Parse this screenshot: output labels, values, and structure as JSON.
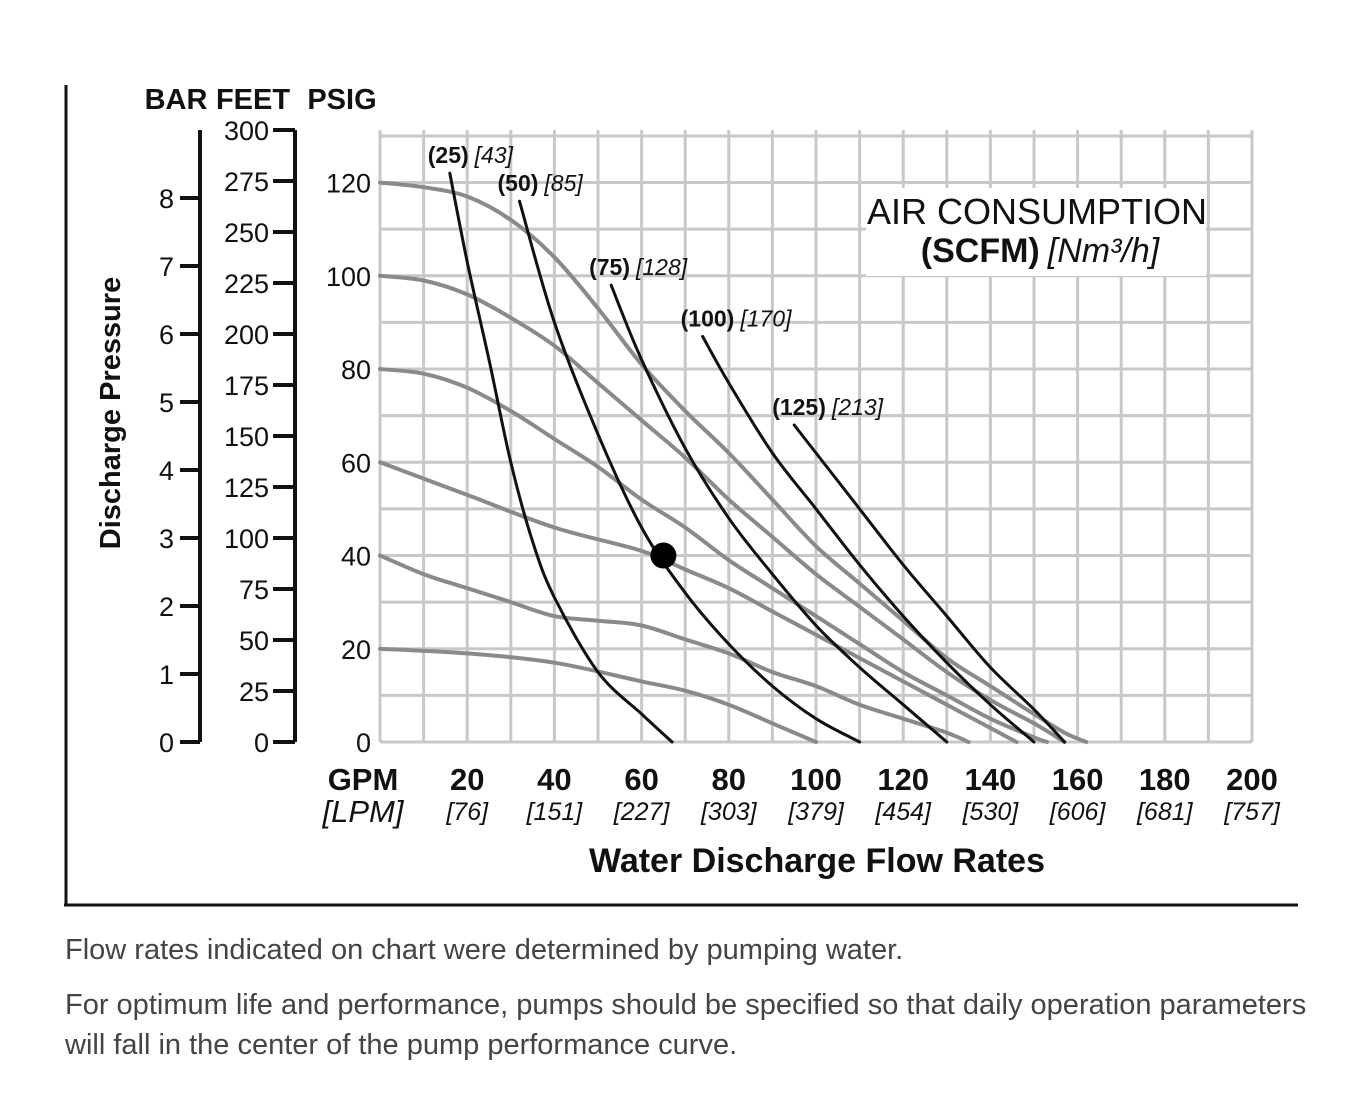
{
  "chart_data": {
    "type": "line",
    "x_axis": {
      "unit_label": "GPM",
      "alt_unit_label": "[LPM]",
      "title": "Water Discharge Flow Rates",
      "range": [
        0,
        200
      ],
      "ticks": [
        20,
        40,
        60,
        80,
        100,
        120,
        140,
        160,
        180,
        200
      ],
      "alt_tick_labels": [
        "[76]",
        "[151]",
        "[227]",
        "[303]",
        "[379]",
        "[454]",
        "[530]",
        "[606]",
        "[681]",
        "[757]"
      ]
    },
    "y_axis": {
      "title": "Discharge Pressure",
      "unit_label": "PSIG",
      "range": [
        0,
        130
      ],
      "ticks": [
        0,
        20,
        40,
        60,
        80,
        100,
        120
      ]
    },
    "feet_axis": {
      "unit_label": "FEET",
      "ticks": [
        0,
        25,
        50,
        75,
        100,
        125,
        150,
        175,
        200,
        225,
        250,
        275,
        300
      ]
    },
    "bar_axis": {
      "unit_label": "BAR",
      "ticks": [
        0,
        1,
        2,
        3,
        4,
        5,
        6,
        7,
        8
      ]
    },
    "grid": true,
    "air_consumption_title": "AIR CONSUMPTION",
    "air_consumption_units_bold": "(SCFM)",
    "air_consumption_units_italic": "[Nm³/h]",
    "air_pressure_curves": [
      {
        "points": [
          [
            0,
            120
          ],
          [
            10,
            119
          ],
          [
            20,
            117
          ],
          [
            30,
            112
          ],
          [
            40,
            104
          ],
          [
            50,
            93
          ],
          [
            60,
            81
          ],
          [
            70,
            71
          ],
          [
            80,
            62
          ],
          [
            90,
            52
          ],
          [
            100,
            42
          ],
          [
            110,
            34
          ],
          [
            120,
            26
          ],
          [
            130,
            18
          ],
          [
            140,
            12
          ],
          [
            150,
            6
          ],
          [
            157,
            2
          ],
          [
            162,
            0
          ]
        ]
      },
      {
        "points": [
          [
            0,
            100
          ],
          [
            10,
            99
          ],
          [
            20,
            96
          ],
          [
            30,
            91
          ],
          [
            40,
            85
          ],
          [
            50,
            77
          ],
          [
            60,
            69
          ],
          [
            70,
            61
          ],
          [
            80,
            52
          ],
          [
            90,
            44
          ],
          [
            100,
            36
          ],
          [
            110,
            29
          ],
          [
            120,
            22
          ],
          [
            130,
            15
          ],
          [
            140,
            9
          ],
          [
            150,
            4
          ],
          [
            157,
            0
          ]
        ]
      },
      {
        "points": [
          [
            0,
            80
          ],
          [
            10,
            79
          ],
          [
            20,
            76
          ],
          [
            30,
            71
          ],
          [
            40,
            65
          ],
          [
            50,
            59
          ],
          [
            60,
            52
          ],
          [
            70,
            46
          ],
          [
            80,
            39
          ],
          [
            90,
            33
          ],
          [
            100,
            27
          ],
          [
            110,
            21
          ],
          [
            120,
            15
          ],
          [
            130,
            10
          ],
          [
            140,
            5
          ],
          [
            150,
            1
          ],
          [
            153,
            0
          ]
        ]
      },
      {
        "points": [
          [
            0,
            60
          ],
          [
            20,
            53
          ],
          [
            40,
            46
          ],
          [
            60,
            41
          ],
          [
            70,
            37
          ],
          [
            80,
            33
          ],
          [
            90,
            28
          ],
          [
            100,
            23
          ],
          [
            110,
            18
          ],
          [
            120,
            13
          ],
          [
            130,
            8
          ],
          [
            140,
            3
          ],
          [
            146,
            0
          ]
        ]
      },
      {
        "points": [
          [
            0,
            40
          ],
          [
            10,
            36
          ],
          [
            20,
            33
          ],
          [
            30,
            30
          ],
          [
            40,
            27
          ],
          [
            50,
            26
          ],
          [
            60,
            25
          ],
          [
            70,
            22
          ],
          [
            80,
            19
          ],
          [
            90,
            15
          ],
          [
            100,
            12
          ],
          [
            110,
            8
          ],
          [
            120,
            5
          ],
          [
            130,
            2
          ],
          [
            135,
            0
          ]
        ]
      },
      {
        "points": [
          [
            0,
            20
          ],
          [
            20,
            19
          ],
          [
            40,
            17
          ],
          [
            60,
            13
          ],
          [
            70,
            11
          ],
          [
            80,
            8
          ],
          [
            90,
            4
          ],
          [
            100,
            0
          ]
        ]
      }
    ],
    "air_consumption_curves": [
      {
        "name_bold": "(25)",
        "name_italic": "[43]",
        "points": [
          [
            16,
            122
          ],
          [
            20,
            103
          ],
          [
            25,
            82
          ],
          [
            30,
            60
          ],
          [
            35,
            43
          ],
          [
            40,
            31
          ],
          [
            50,
            15
          ],
          [
            60,
            6
          ],
          [
            67,
            0
          ]
        ]
      },
      {
        "name_bold": "(50)",
        "name_italic": "[85]",
        "points": [
          [
            32,
            116
          ],
          [
            40,
            90
          ],
          [
            50,
            66
          ],
          [
            60,
            46
          ],
          [
            70,
            32
          ],
          [
            80,
            21
          ],
          [
            90,
            12
          ],
          [
            100,
            5
          ],
          [
            110,
            0
          ]
        ]
      },
      {
        "name_bold": "(75)",
        "name_italic": "[128]",
        "points": [
          [
            53,
            98
          ],
          [
            60,
            82
          ],
          [
            70,
            63
          ],
          [
            80,
            48
          ],
          [
            90,
            36
          ],
          [
            100,
            25
          ],
          [
            110,
            16
          ],
          [
            120,
            8
          ],
          [
            130,
            0
          ]
        ]
      },
      {
        "name_bold": "(100)",
        "name_italic": "[170]",
        "points": [
          [
            74,
            87
          ],
          [
            80,
            77
          ],
          [
            90,
            62
          ],
          [
            100,
            50
          ],
          [
            110,
            38
          ],
          [
            120,
            27
          ],
          [
            130,
            17
          ],
          [
            140,
            8
          ],
          [
            150,
            0
          ]
        ]
      },
      {
        "name_bold": "(125)",
        "name_italic": "[213]",
        "points": [
          [
            95,
            68
          ],
          [
            100,
            62
          ],
          [
            110,
            50
          ],
          [
            120,
            38
          ],
          [
            130,
            27
          ],
          [
            140,
            16
          ],
          [
            150,
            7
          ],
          [
            157,
            0
          ]
        ]
      }
    ],
    "marker": {
      "x": 65,
      "y": 40
    }
  },
  "notes": [
    "Flow rates indicated on chart were determined by pumping water.",
    "For optimum life and performance, pumps should be specified so that daily operation parameters will fall in the center of the pump performance curve."
  ],
  "colors": {
    "grid": "#c8c8c8",
    "pressure_curve": "#8a8a8a",
    "air_curve": "#111111",
    "text": "#111111",
    "note_text": "#444444"
  }
}
